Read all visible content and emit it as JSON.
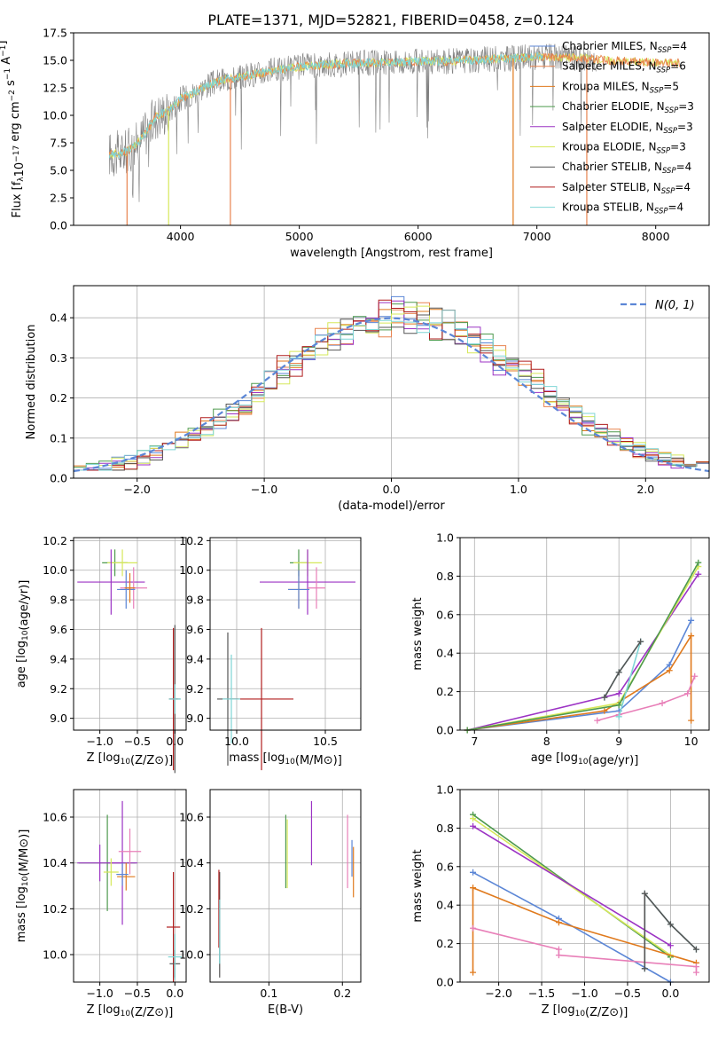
{
  "figure": {
    "title": "PLATE=1371, MJD=52821, FIBERID=0458, z=0.124"
  },
  "colors": {
    "Chabrier MILES": "#5b86d6",
    "Salpeter MILES": "#e8834f",
    "Kroupa MILES": "#e07a1d",
    "Chabrier ELODIE": "#4e9a4e",
    "Salpeter ELODIE": "#9c33c4",
    "Kroupa ELODIE": "#d6e85a",
    "Chabrier STELIB": "#555555",
    "Salpeter STELIB": "#b01e1e",
    "Kroupa STELIB": "#7fd6d6",
    "normal_curve": "#5b86d6",
    "pink_series": "#e87fb8"
  },
  "chart_data": [
    {
      "id": "spectrum",
      "type": "line",
      "title": "PLATE=1371, MJD=52821, FIBERID=0458, z=0.124",
      "xlabel": "wavelength [Angstrom, rest frame]",
      "ylabel": "Flux [f_λ10^−17 erg cm^−2 s^−1 A^−1]",
      "xlim": [
        3100,
        8450
      ],
      "ylim": [
        0,
        17.5
      ],
      "xticks": [
        4000,
        5000,
        6000,
        7000,
        8000
      ],
      "yticks": [
        0.0,
        2.5,
        5.0,
        7.5,
        10.0,
        12.5,
        15.0,
        17.5
      ],
      "legend_position": "right",
      "legend": [
        {
          "label": "Chabrier MILES, N_SSP=4",
          "text": "Chabrier MILES, N",
          "sub": "SSP",
          "suffix": "=4",
          "color_key": "Chabrier MILES"
        },
        {
          "label": "Salpeter MILES, N_SSP=6",
          "text": "Salpeter MILES, N",
          "sub": "SSP",
          "suffix": "=6",
          "color_key": "Salpeter MILES"
        },
        {
          "label": "Kroupa MILES, N_SSP=5",
          "text": "Kroupa MILES, N",
          "sub": "SSP",
          "suffix": "=5",
          "color_key": "Kroupa MILES"
        },
        {
          "label": "Chabrier ELODIE, N_SSP=3",
          "text": "Chabrier ELODIE, N",
          "sub": "SSP",
          "suffix": "=3",
          "color_key": "Chabrier ELODIE"
        },
        {
          "label": "Salpeter ELODIE, N_SSP=3",
          "text": "Salpeter ELODIE, N",
          "sub": "SSP",
          "suffix": "=3",
          "color_key": "Salpeter ELODIE"
        },
        {
          "label": "Kroupa ELODIE, N_SSP=3",
          "text": "Kroupa ELODIE, N",
          "sub": "SSP",
          "suffix": "=3",
          "color_key": "Kroupa ELODIE"
        },
        {
          "label": "Chabrier STELIB, N_SSP=4",
          "text": "Chabrier STELIB, N",
          "sub": "SSP",
          "suffix": "=4",
          "color_key": "Chabrier STELIB"
        },
        {
          "label": "Salpeter STELIB, N_SSP=4",
          "text": "Salpeter STELIB, N",
          "sub": "SSP",
          "suffix": "=4",
          "color_key": "Salpeter STELIB"
        },
        {
          "label": "Kroupa STELIB, N_SSP=4",
          "text": "Kroupa STELIB, N",
          "sub": "SSP",
          "suffix": "=4",
          "color_key": "Kroupa STELIB"
        }
      ],
      "continuum": {
        "x": [
          3400,
          3500,
          3600,
          3700,
          3800,
          3900,
          4000,
          4100,
          4200,
          4300,
          4400,
          4600,
          4800,
          5000,
          5200,
          5400,
          5600,
          5800,
          6000,
          6200,
          6400,
          6600,
          6800,
          7000,
          7200,
          7400,
          7600,
          7800,
          8000,
          8200
        ],
        "y": [
          6.5,
          6.5,
          7.0,
          8.3,
          10.0,
          10.4,
          11.5,
          12.0,
          12.6,
          13.0,
          13.3,
          13.7,
          14.1,
          14.4,
          14.6,
          14.7,
          14.8,
          14.8,
          14.9,
          14.9,
          15.0,
          15.1,
          15.2,
          15.3,
          15.3,
          15.2,
          15.0,
          14.9,
          14.8,
          14.8
        ]
      },
      "drops": [
        {
          "x": 3550,
          "y": 0,
          "color_key": "Salpeter MILES"
        },
        {
          "x": 3900,
          "y": 0,
          "color_key": "Kroupa ELODIE"
        },
        {
          "x": 4420,
          "y": 0,
          "color_key": "Salpeter MILES"
        },
        {
          "x": 6800,
          "y": 0,
          "color_key": "Kroupa MILES"
        },
        {
          "x": 7420,
          "y": 0,
          "color_key": "Salpeter MILES"
        }
      ]
    },
    {
      "id": "residuals",
      "type": "histogram",
      "xlabel": "(data-model)/error",
      "ylabel": "Normed distribution",
      "xlim": [
        -2.5,
        2.5
      ],
      "ylim": [
        0,
        0.48
      ],
      "xticks": [
        -2,
        -1,
        0,
        1,
        2
      ],
      "yticks": [
        0.0,
        0.1,
        0.2,
        0.3,
        0.4
      ],
      "grid": true,
      "legend_position": "top-right",
      "legend": [
        {
          "label": "N(0,1)",
          "color_key": "normal_curve"
        }
      ],
      "bin_width": 0.1,
      "bin_start": -2.5,
      "note_values": "approximate normal-shaped distributions per model"
    },
    {
      "id": "age-vs-Z",
      "type": "scatter",
      "xlabel": "Z [log10(Z/Z⊙)]",
      "ylabel": "age  [log10(age/yr)]",
      "xlim": [
        -1.35,
        0.15
      ],
      "ylim": [
        8.92,
        10.22
      ],
      "xticks": [
        -1.0,
        -0.5,
        0.0
      ],
      "yticks": [
        9.0,
        9.2,
        9.4,
        9.6,
        9.8,
        10.0,
        10.2
      ],
      "grid": true,
      "points": [
        {
          "x": -0.8,
          "y": 10.05,
          "xerr": 0.17,
          "yerr": 0.09,
          "color_key": "Chabrier ELODIE"
        },
        {
          "x": -0.7,
          "y": 10.05,
          "xerr": 0.2,
          "yerr": 0.09,
          "color_key": "Kroupa ELODIE"
        },
        {
          "x": -0.85,
          "y": 9.92,
          "xerr": 0.45,
          "yerr": 0.22,
          "color_key": "Salpeter ELODIE"
        },
        {
          "x": -0.55,
          "y": 9.88,
          "xerr": 0.18,
          "yerr": 0.14,
          "color_key": "pink_series"
        },
        {
          "x": -0.65,
          "y": 9.87,
          "xerr": 0.12,
          "yerr": 0.13,
          "color_key": "Chabrier MILES"
        },
        {
          "x": -0.6,
          "y": 9.88,
          "xerr": 0.07,
          "yerr": 0.1,
          "color_key": "Kroupa MILES"
        },
        {
          "x": 0.0,
          "y": 9.13,
          "xerr": 0.07,
          "yerr": 0.5,
          "color_key": "Chabrier STELIB"
        },
        {
          "x": -0.02,
          "y": 9.13,
          "xerr": 0.06,
          "yerr": 0.48,
          "color_key": "Salpeter STELIB"
        },
        {
          "x": 0.0,
          "y": 9.13,
          "xerr": 0.08,
          "yerr": 0.1,
          "color_key": "Kroupa STELIB"
        }
      ]
    },
    {
      "id": "age-vs-mass",
      "type": "scatter",
      "xlabel": "mass [log10(M/M⊙)]",
      "ylabel": "",
      "xlim": [
        9.85,
        10.7
      ],
      "ylim": [
        8.92,
        10.22
      ],
      "xticks": [
        10.0,
        10.5
      ],
      "yticks": [
        9.0,
        9.2,
        9.4,
        9.6,
        9.8,
        10.0,
        10.2
      ],
      "grid": true,
      "points": [
        {
          "x": 10.35,
          "y": 10.05,
          "xerr": 0.05,
          "yerr": 0.09,
          "color_key": "Chabrier ELODIE"
        },
        {
          "x": 10.4,
          "y": 10.05,
          "xerr": 0.08,
          "yerr": 0.09,
          "color_key": "Kroupa ELODIE"
        },
        {
          "x": 10.4,
          "y": 9.92,
          "xerr": 0.27,
          "yerr": 0.22,
          "color_key": "Salpeter ELODIE"
        },
        {
          "x": 10.45,
          "y": 9.88,
          "xerr": 0.05,
          "yerr": 0.14,
          "color_key": "pink_series"
        },
        {
          "x": 10.35,
          "y": 9.87,
          "xerr": 0.06,
          "yerr": 0.13,
          "color_key": "Kroupa MILES"
        },
        {
          "x": 10.35,
          "y": 9.87,
          "xerr": 0.06,
          "yerr": 0.13,
          "color_key": "Chabrier MILES"
        },
        {
          "x": 9.95,
          "y": 9.13,
          "xerr": 0.06,
          "yerr": 0.45,
          "color_key": "Chabrier STELIB"
        },
        {
          "x": 10.14,
          "y": 9.13,
          "xerr": 0.18,
          "yerr": 0.48,
          "color_key": "Salpeter STELIB"
        },
        {
          "x": 9.97,
          "y": 9.13,
          "xerr": 0.05,
          "yerr": 0.3,
          "color_key": "Kroupa STELIB"
        }
      ]
    },
    {
      "id": "weight-vs-age",
      "type": "line",
      "xlabel": "age  [log10(age/yr)]",
      "ylabel": "mass weight",
      "xlim": [
        6.8,
        10.25
      ],
      "ylim": [
        0,
        1.0
      ],
      "xticks": [
        7,
        8,
        9,
        10
      ],
      "yticks": [
        0.0,
        0.2,
        0.4,
        0.6,
        0.8,
        1.0
      ],
      "grid": true,
      "series": [
        {
          "name": "Chabrier MILES",
          "color_key": "Chabrier MILES",
          "x": [
            6.9,
            9.0,
            9.7,
            10.0
          ],
          "y": [
            0.0,
            0.1,
            0.34,
            0.57
          ]
        },
        {
          "name": "Kroupa MILES",
          "color_key": "Kroupa MILES",
          "x": [
            6.9,
            8.8,
            9.7,
            10.0,
            10.0
          ],
          "y": [
            0.0,
            0.1,
            0.31,
            0.49,
            0.05
          ]
        },
        {
          "name": "Salpeter ELODIE",
          "color_key": "Salpeter ELODIE",
          "x": [
            6.9,
            9.0,
            10.1
          ],
          "y": [
            0.0,
            0.19,
            0.81
          ]
        },
        {
          "name": "Kroupa ELODIE",
          "color_key": "Kroupa ELODIE",
          "x": [
            6.9,
            9.0,
            10.1
          ],
          "y": [
            0.0,
            0.14,
            0.85
          ]
        },
        {
          "name": "Chabrier ELODIE",
          "color_key": "Chabrier ELODIE",
          "x": [
            6.9,
            9.0,
            10.1
          ],
          "y": [
            0.0,
            0.13,
            0.87
          ]
        },
        {
          "name": "pink",
          "color_key": "pink_series",
          "x": [
            8.7,
            9.0,
            9.6,
            9.95,
            10.05
          ],
          "y": [
            0.05,
            0.08,
            0.14,
            0.19,
            0.28
          ]
        },
        {
          "name": "Kroupa STELIB",
          "color_key": "Kroupa STELIB",
          "x": [
            8.8,
            9.0,
            9.3,
            9.0,
            9.3
          ],
          "y": [
            0.17,
            0.3,
            0.46,
            0.07,
            0.46
          ]
        },
        {
          "name": "Chabrier STELIB",
          "color_key": "Chabrier STELIB",
          "x": [
            8.8,
            9.0,
            9.3
          ],
          "y": [
            0.17,
            0.3,
            0.46
          ]
        }
      ]
    },
    {
      "id": "mass-vs-Z",
      "type": "scatter",
      "xlabel": "Z [log10(Z/Z⊙)]",
      "ylabel": "mass [log10(M/M⊙)]",
      "xlim": [
        -1.35,
        0.15
      ],
      "ylim": [
        9.88,
        10.72
      ],
      "xticks": [
        -1.0,
        -0.5,
        0.0
      ],
      "yticks": [
        10.0,
        10.2,
        10.4,
        10.6
      ],
      "grid": true,
      "points": [
        {
          "x": -0.9,
          "y": 10.4,
          "xerr": 0.38,
          "yerr": 0.21,
          "color_key": "Chabrier ELODIE"
        },
        {
          "x": -0.7,
          "y": 10.4,
          "xerr": 0.2,
          "yerr": 0.27,
          "color_key": "Salpeter ELODIE"
        },
        {
          "x": -1.0,
          "y": 10.4,
          "xerr": 0.3,
          "yerr": 0.08,
          "color_key": "Salpeter ELODIE"
        },
        {
          "x": -0.85,
          "y": 10.36,
          "xerr": 0.1,
          "yerr": 0.06,
          "color_key": "Kroupa ELODIE"
        },
        {
          "x": -0.6,
          "y": 10.45,
          "xerr": 0.15,
          "yerr": 0.1,
          "color_key": "pink_series"
        },
        {
          "x": -0.65,
          "y": 10.34,
          "xerr": 0.12,
          "yerr": 0.06,
          "color_key": "Kroupa MILES"
        },
        {
          "x": -0.7,
          "y": 10.35,
          "xerr": 0.08,
          "yerr": 0.05,
          "color_key": "Chabrier MILES"
        },
        {
          "x": -0.02,
          "y": 10.12,
          "xerr": 0.09,
          "yerr": 0.24,
          "color_key": "Salpeter STELIB"
        },
        {
          "x": 0.0,
          "y": 9.96,
          "xerr": 0.07,
          "yerr": 0.06,
          "color_key": "Chabrier STELIB"
        },
        {
          "x": 0.0,
          "y": 9.99,
          "xerr": 0.09,
          "yerr": 0.1,
          "color_key": "Kroupa STELIB"
        }
      ]
    },
    {
      "id": "mass-vs-ebv",
      "type": "scatter",
      "xlabel": "E(B-V)",
      "ylabel": "",
      "xlim": [
        0.02,
        0.225
      ],
      "ylim": [
        9.88,
        10.72
      ],
      "xticks": [
        0.1,
        0.2
      ],
      "yticks": [
        10.0,
        10.2,
        10.4,
        10.6
      ],
      "grid": true,
      "points": [
        {
          "x": 0.033,
          "y": 10.13,
          "yerr": 0.23,
          "color_key": "Chabrier STELIB"
        },
        {
          "x": 0.032,
          "y": 10.2,
          "yerr": 0.17,
          "color_key": "Salpeter STELIB"
        },
        {
          "x": 0.033,
          "y": 10.1,
          "yerr": 0.14,
          "color_key": "Kroupa STELIB"
        },
        {
          "x": 0.123,
          "y": 10.45,
          "yerr": 0.16,
          "color_key": "Chabrier ELODIE"
        },
        {
          "x": 0.125,
          "y": 10.44,
          "yerr": 0.15,
          "color_key": "Kroupa ELODIE"
        },
        {
          "x": 0.158,
          "y": 10.53,
          "yerr": 0.14,
          "color_key": "Salpeter ELODIE"
        },
        {
          "x": 0.207,
          "y": 10.45,
          "yerr": 0.16,
          "color_key": "pink_series"
        },
        {
          "x": 0.215,
          "y": 10.36,
          "yerr": 0.11,
          "color_key": "Kroupa MILES"
        },
        {
          "x": 0.213,
          "y": 10.42,
          "yerr": 0.08,
          "color_key": "Chabrier MILES"
        }
      ]
    },
    {
      "id": "weight-vs-Z",
      "type": "line",
      "xlabel": "Z [log10(Z/Z⊙)]",
      "ylabel": "mass weight",
      "xlim": [
        -2.45,
        0.45
      ],
      "ylim": [
        0,
        1.0
      ],
      "xticks": [
        -2.0,
        -1.5,
        -1.0,
        -0.5,
        0.0
      ],
      "yticks": [
        0.0,
        0.2,
        0.4,
        0.6,
        0.8,
        1.0
      ],
      "grid": true,
      "series": [
        {
          "name": "Chabrier ELODIE",
          "color_key": "Chabrier ELODIE",
          "x": [
            -2.3,
            0.0
          ],
          "y": [
            0.87,
            0.13
          ]
        },
        {
          "name": "Kroupa ELODIE",
          "color_key": "Kroupa ELODIE",
          "x": [
            -2.3,
            0.0
          ],
          "y": [
            0.85,
            0.14
          ]
        },
        {
          "name": "Salpeter ELODIE",
          "color_key": "Salpeter ELODIE",
          "x": [
            -2.3,
            0.0
          ],
          "y": [
            0.81,
            0.19
          ]
        },
        {
          "name": "Chabrier MILES",
          "color_key": "Chabrier MILES",
          "x": [
            -2.3,
            -1.3,
            0.0
          ],
          "y": [
            0.57,
            0.33,
            0.0
          ]
        },
        {
          "name": "Kroupa MILES",
          "color_key": "Kroupa MILES",
          "x": [
            -2.3,
            -2.3,
            -1.3,
            0.3
          ],
          "y": [
            0.05,
            0.49,
            0.31,
            0.1
          ]
        },
        {
          "name": "pink",
          "color_key": "pink_series",
          "x": [
            -2.3,
            -1.3,
            -1.3,
            0.3,
            0.3
          ],
          "y": [
            0.28,
            0.17,
            0.14,
            0.08,
            0.05
          ]
        },
        {
          "name": "Kroupa STELIB",
          "color_key": "Kroupa STELIB",
          "x": [
            -0.3,
            -0.3,
            0.0,
            0.3
          ],
          "y": [
            0.07,
            0.46,
            0.3,
            0.17
          ]
        },
        {
          "name": "Chabrier STELIB",
          "color_key": "Chabrier STELIB",
          "x": [
            -0.3,
            -0.3,
            0.0,
            0.3
          ],
          "y": [
            0.07,
            0.46,
            0.3,
            0.17
          ]
        }
      ]
    }
  ]
}
